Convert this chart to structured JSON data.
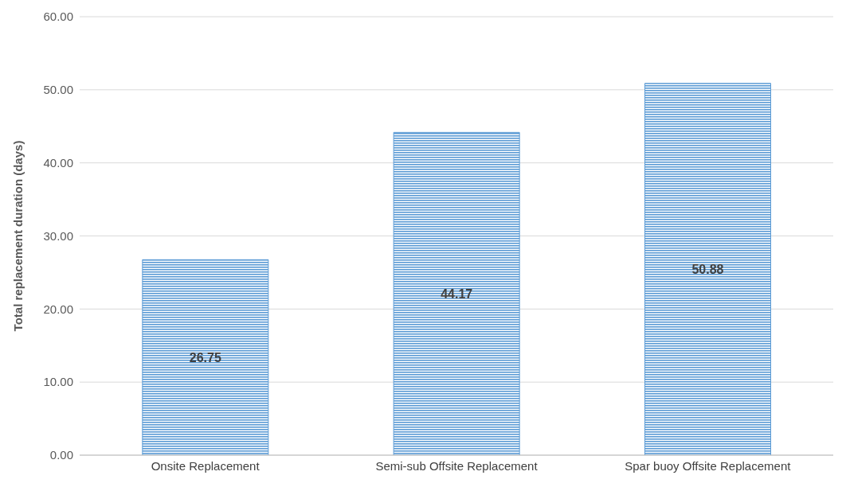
{
  "chart_data": {
    "type": "bar",
    "ylabel": "Total replacement duration (days)",
    "categories": [
      "Onsite Replacement",
      "Semi-sub Offsite Replacement",
      "Spar buoy Offsite Replacement"
    ],
    "values": [
      26.75,
      44.17,
      50.88
    ],
    "color": "#5b9bd5",
    "ylim": [
      0,
      60
    ],
    "yticks": [
      {
        "value": 0,
        "label": "0.00"
      },
      {
        "value": 10,
        "label": "10.00"
      },
      {
        "value": 20,
        "label": "20.00"
      },
      {
        "value": 30,
        "label": "30.00"
      },
      {
        "value": 40,
        "label": "40.00"
      },
      {
        "value": 50,
        "label": "50.00"
      },
      {
        "value": 60,
        "label": "60.00"
      }
    ],
    "grid": "y",
    "data_labels": true
  }
}
